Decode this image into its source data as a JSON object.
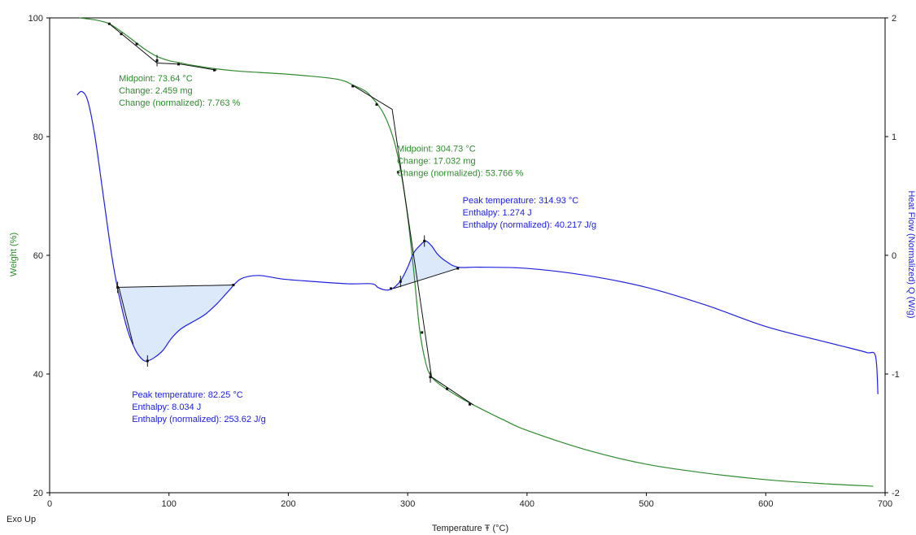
{
  "chart_data": {
    "type": "line",
    "title": "",
    "xlabel": "Temperature Ŧ (°C)",
    "ylabel": "Weight  (%)",
    "y2label": "Heat Flow (Normalized) Q (W/g)",
    "corner_label": "Exo Up",
    "xlim": [
      0,
      700
    ],
    "ylim": [
      20,
      100
    ],
    "y2lim": [
      -2,
      2
    ],
    "x_ticks": [
      0,
      100,
      200,
      300,
      400,
      500,
      600,
      700
    ],
    "y_ticks": [
      20,
      40,
      60,
      80,
      100
    ],
    "y2_ticks": [
      -2,
      -1,
      0,
      1,
      2
    ],
    "grid": false,
    "colors": {
      "weight": "#2e8b2e",
      "heatflow": "#2020e0",
      "tangent": "#111111",
      "fill": "#dbe9fb"
    },
    "series": [
      {
        "axis": "left",
        "x": [
          25,
          40,
          50,
          60,
          70,
          80,
          90,
          100,
          110,
          120,
          140,
          160,
          200,
          240,
          255,
          265,
          270,
          275,
          280,
          285,
          290,
          295,
          300,
          305,
          310,
          315,
          320,
          330,
          340,
          355,
          380,
          400,
          450,
          500,
          550,
          600,
          650,
          690
        ],
        "values": [
          100,
          99.6,
          99.0,
          97.7,
          96.2,
          94.7,
          93.5,
          92.8,
          92.4,
          92.0,
          91.4,
          91.0,
          90.5,
          89.7,
          88.6,
          87.6,
          86.6,
          85.4,
          83.8,
          81.5,
          78.2,
          73.3,
          66.5,
          57.5,
          47.5,
          42.0,
          39.5,
          37.8,
          36.5,
          34.8,
          32.3,
          30.5,
          27.2,
          24.8,
          23.3,
          22.2,
          21.5,
          21.1
        ]
      },
      {
        "axis": "right",
        "x": [
          23,
          27,
          32,
          38,
          45,
          52,
          58,
          65,
          72,
          78,
          82,
          88,
          95,
          102,
          110,
          120,
          130,
          140,
          150,
          160,
          175,
          195,
          220,
          250,
          270,
          275,
          280,
          285,
          290,
          295,
          300,
          305,
          310,
          315,
          320,
          325,
          332,
          342,
          360,
          400,
          450,
          500,
          550,
          600,
          650,
          670,
          685,
          692,
          694
        ],
        "values": [
          1.35,
          1.38,
          1.3,
          1.0,
          0.5,
          0.0,
          -0.33,
          -0.62,
          -0.8,
          -0.88,
          -0.89,
          -0.86,
          -0.8,
          -0.7,
          -0.62,
          -0.56,
          -0.5,
          -0.41,
          -0.3,
          -0.2,
          -0.17,
          -0.2,
          -0.22,
          -0.24,
          -0.24,
          -0.27,
          -0.29,
          -0.29,
          -0.26,
          -0.2,
          -0.1,
          0.02,
          0.08,
          0.12,
          0.08,
          0.01,
          -0.05,
          -0.1,
          -0.1,
          -0.11,
          -0.17,
          -0.27,
          -0.42,
          -0.6,
          -0.73,
          -0.78,
          -0.82,
          -0.85,
          -1.17
        ]
      }
    ],
    "fills": [
      {
        "axis": "right",
        "x_from": 58,
        "x_to": 155,
        "base": [
          [
            58,
            -0.27
          ],
          [
            155,
            -0.25
          ]
        ]
      },
      {
        "axis": "right",
        "x_from": 288,
        "x_to": 342,
        "base": [
          [
            288,
            -0.28
          ],
          [
            342,
            -0.11
          ]
        ]
      }
    ],
    "tangents": [
      {
        "axis": "left",
        "points": [
          [
            50,
            99.0
          ],
          [
            90,
            92.4
          ],
          [
            110,
            92.2
          ],
          [
            140,
            91.2
          ]
        ]
      },
      {
        "axis": "left",
        "points": [
          [
            255,
            88.5
          ],
          [
            287,
            84.6
          ],
          [
            320,
            39.5
          ],
          [
            355,
            34.8
          ]
        ]
      },
      {
        "axis": "right",
        "points": [
          [
            58,
            -0.27
          ],
          [
            155,
            -0.25
          ]
        ]
      },
      {
        "axis": "right",
        "points": [
          [
            288,
            -0.28
          ],
          [
            342,
            -0.11
          ]
        ]
      },
      {
        "axis": "right",
        "points": [
          [
            58,
            -0.27
          ],
          [
            70,
            -0.75
          ]
        ]
      }
    ],
    "markers": [
      {
        "axis": "left",
        "x": 50,
        "y": 99.0,
        "tick": false
      },
      {
        "axis": "left",
        "x": 60,
        "y": 97.3,
        "tick": false
      },
      {
        "axis": "left",
        "x": 73,
        "y": 95.6,
        "tick": false
      },
      {
        "axis": "left",
        "x": 90,
        "y": 92.8,
        "tick": true
      },
      {
        "axis": "left",
        "x": 108,
        "y": 92.2,
        "tick": false
      },
      {
        "axis": "left",
        "x": 138,
        "y": 91.2,
        "tick": false
      },
      {
        "axis": "left",
        "x": 254,
        "y": 88.5,
        "tick": false
      },
      {
        "axis": "left",
        "x": 274,
        "y": 85.4,
        "tick": false
      },
      {
        "axis": "left",
        "x": 292,
        "y": 74.0,
        "tick": false
      },
      {
        "axis": "left",
        "x": 312,
        "y": 47.0,
        "tick": false
      },
      {
        "axis": "left",
        "x": 319,
        "y": 39.5,
        "tick": true
      },
      {
        "axis": "left",
        "x": 333,
        "y": 37.5,
        "tick": false
      },
      {
        "axis": "left",
        "x": 352,
        "y": 34.9,
        "tick": false
      },
      {
        "axis": "right",
        "x": 57,
        "y": -0.27,
        "tick": true
      },
      {
        "axis": "right",
        "x": 82,
        "y": -0.89,
        "tick": true
      },
      {
        "axis": "right",
        "x": 154,
        "y": -0.25,
        "tick": false
      },
      {
        "axis": "right",
        "x": 286,
        "y": -0.28,
        "tick": false
      },
      {
        "axis": "right",
        "x": 294,
        "y": -0.22,
        "tick": true
      },
      {
        "axis": "right",
        "x": 314,
        "y": 0.12,
        "tick": true
      },
      {
        "axis": "right",
        "x": 342,
        "y": -0.11,
        "tick": false
      }
    ],
    "annotations": [
      {
        "color": "#2e8b2e",
        "axis": "left",
        "x": 58,
        "y": 89.3,
        "lines": [
          "Midpoint: 73.64 °C",
          "Change: 2.459 mg",
          "Change (normalized): 7.763 %"
        ]
      },
      {
        "color": "#2e8b2e",
        "axis": "left",
        "x": 291,
        "y": 77.5,
        "lines": [
          "Midpoint: 304.73 °C",
          "Change: 17.032 mg",
          "Change (normalized): 53.766 %"
        ]
      },
      {
        "color": "#2020e0",
        "axis": "right",
        "x": 346,
        "y": 0.44,
        "lines": [
          "Peak temperature: 314.93 °C",
          "Enthalpy: 1.274 J",
          "Enthalpy (normalized): 40.217 J/g"
        ]
      },
      {
        "color": "#2020e0",
        "axis": "right",
        "x": 69,
        "y": -1.2,
        "lines": [
          "Peak temperature: 82.25 °C",
          "Enthalpy: 8.034 J",
          "Enthalpy (normalized): 253.62 J/g"
        ]
      }
    ]
  }
}
